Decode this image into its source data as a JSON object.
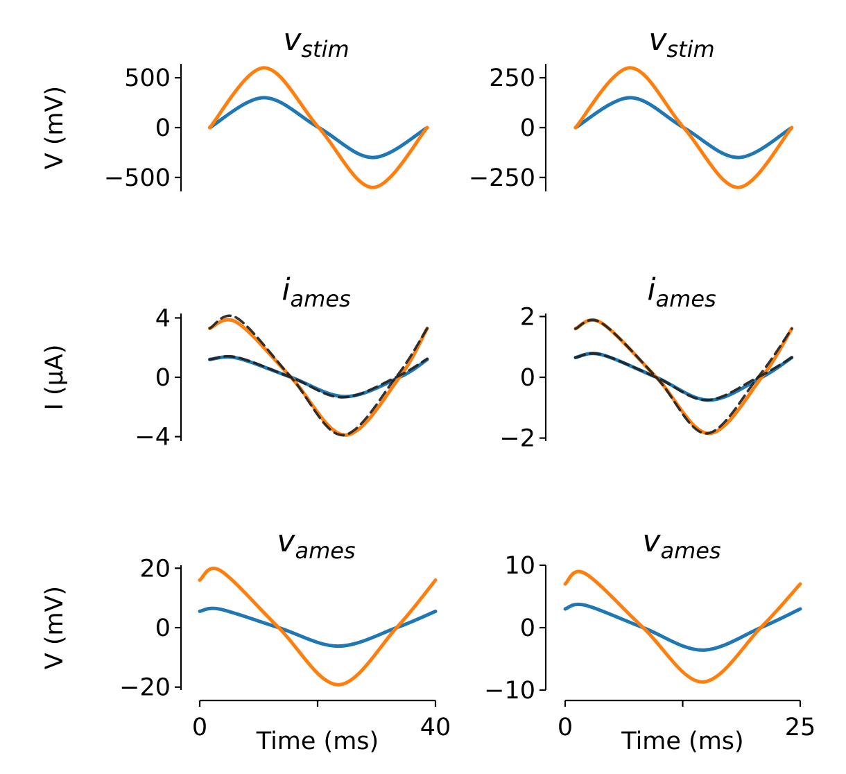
{
  "chart_data": [
    {
      "type": "line",
      "title_main": "v",
      "title_sub": "stim",
      "ylabel": "V (mV)",
      "ylim": [
        -640,
        640
      ],
      "yticks": [
        500,
        0,
        -500
      ],
      "ytick_labels": [
        "500",
        "0",
        "−500"
      ],
      "xlim": [
        0,
        40
      ],
      "series": [
        {
          "color": "#1f77b4",
          "x": [
            1.7,
            10.9,
            20.2,
            29.4,
            38.6
          ],
          "y": [
            0,
            300,
            0,
            -300,
            0
          ]
        },
        {
          "color": "#ff7f0e",
          "x": [
            1.7,
            10.9,
            20.2,
            29.4,
            38.6
          ],
          "y": [
            0,
            600,
            0,
            -600,
            0
          ]
        }
      ]
    },
    {
      "type": "line",
      "title_main": "v",
      "title_sub": "stim",
      "ylabel": "",
      "ylim": [
        -320,
        320
      ],
      "yticks": [
        250,
        0,
        -250
      ],
      "ytick_labels": [
        "250",
        "0",
        "−250"
      ],
      "xlim": [
        0,
        25
      ],
      "series": [
        {
          "color": "#1f77b4",
          "x": [
            1.1,
            6.9,
            12.6,
            18.4,
            24.1
          ],
          "y": [
            0,
            150,
            0,
            -150,
            0
          ]
        },
        {
          "color": "#ff7f0e",
          "x": [
            1.1,
            6.9,
            12.6,
            18.4,
            24.1
          ],
          "y": [
            0,
            300,
            0,
            -300,
            0
          ]
        }
      ]
    },
    {
      "type": "line",
      "title_main": "i",
      "title_sub": "ames",
      "ylabel": "I (μA)",
      "ylim": [
        -4.3,
        4.3
      ],
      "yticks": [
        4,
        0,
        -4
      ],
      "ytick_labels": [
        "4",
        "0",
        "−4"
      ],
      "xlim": [
        0,
        40
      ],
      "series": [
        {
          "color": "#1f77b4",
          "x": [
            1.7,
            6.3,
            15.5,
            24.7,
            33.9,
            38.6
          ],
          "y": [
            1.2,
            1.3,
            0,
            -1.3,
            0,
            1.2
          ]
        },
        {
          "color": "#ff7f0e",
          "x": [
            1.7,
            6.3,
            15.5,
            24.7,
            33.9,
            38.6
          ],
          "y": [
            3.3,
            3.7,
            0,
            -3.9,
            0,
            3.3
          ]
        },
        {
          "color": "#222222",
          "dashed": true,
          "x": [
            1.7,
            6.3,
            15.5,
            24.2,
            33.3,
            38.6
          ],
          "y": [
            1.2,
            1.35,
            0,
            -1.35,
            0,
            1.25
          ]
        },
        {
          "color": "#222222",
          "dashed": true,
          "x": [
            1.7,
            6.3,
            15.5,
            24.2,
            33.3,
            38.6
          ],
          "y": [
            3.3,
            4.0,
            0,
            -3.9,
            0,
            3.3
          ]
        }
      ]
    },
    {
      "type": "line",
      "title_main": "i",
      "title_sub": "ames",
      "ylabel": "",
      "ylim": [
        -2.1,
        2.1
      ],
      "yticks": [
        2,
        0,
        -2
      ],
      "ytick_labels": [
        "2",
        "0",
        "−2"
      ],
      "xlim": [
        0,
        25
      ],
      "series": [
        {
          "color": "#1f77b4",
          "x": [
            1.1,
            3.8,
            9.7,
            15.3,
            20.9,
            24.1
          ],
          "y": [
            0.65,
            0.75,
            0,
            -0.75,
            0,
            0.65
          ]
        },
        {
          "color": "#ff7f0e",
          "x": [
            1.1,
            3.8,
            9.7,
            15.3,
            20.9,
            24.1
          ],
          "y": [
            1.6,
            1.8,
            0,
            -1.85,
            0,
            1.6
          ]
        },
        {
          "color": "#222222",
          "dashed": true,
          "x": [
            1.1,
            3.8,
            9.7,
            15.0,
            20.5,
            24.1
          ],
          "y": [
            0.65,
            0.75,
            0,
            -0.75,
            0,
            0.65
          ]
        },
        {
          "color": "#222222",
          "dashed": true,
          "x": [
            1.1,
            3.8,
            9.7,
            15.0,
            20.5,
            24.1
          ],
          "y": [
            1.6,
            1.8,
            0,
            -1.85,
            0,
            1.6
          ]
        }
      ]
    },
    {
      "type": "line",
      "title_main": "v",
      "title_sub": "ames",
      "ylabel": "V (mV)",
      "xlabel": "Time (ms)",
      "ylim": [
        -21,
        21
      ],
      "yticks": [
        20,
        0,
        -20
      ],
      "ytick_labels": [
        "20",
        "0",
        "−20"
      ],
      "xlim": [
        0,
        40
      ],
      "xticks": [
        0,
        20,
        40
      ],
      "xtick_labels": [
        "0",
        "",
        "40"
      ],
      "series": [
        {
          "color": "#1f77b4",
          "x": [
            0,
            3.5,
            13.4,
            23.5,
            33.4,
            40
          ],
          "y": [
            5.5,
            6.2,
            0,
            -6.2,
            0,
            5.5
          ]
        },
        {
          "color": "#ff7f0e",
          "x": [
            0,
            3.5,
            13.4,
            23.5,
            33.4,
            40
          ],
          "y": [
            16,
            19.2,
            0,
            -19.2,
            0,
            16
          ]
        }
      ]
    },
    {
      "type": "line",
      "title_main": "v",
      "title_sub": "ames",
      "ylabel": "",
      "xlabel": "Time (ms)",
      "ylim": [
        -10,
        10
      ],
      "yticks": [
        10,
        0,
        -10
      ],
      "ytick_labels": [
        "10",
        "0",
        "−10"
      ],
      "xlim": [
        0,
        25
      ],
      "xticks": [
        0,
        12.5,
        25
      ],
      "xtick_labels": [
        "0",
        "",
        "25"
      ],
      "series": [
        {
          "color": "#1f77b4",
          "x": [
            0,
            2.1,
            8.3,
            14.6,
            20.8,
            25
          ],
          "y": [
            3.0,
            3.6,
            0,
            -3.6,
            0,
            3.0
          ]
        },
        {
          "color": "#ff7f0e",
          "x": [
            0,
            2.1,
            8.3,
            14.6,
            20.8,
            25
          ],
          "y": [
            7.0,
            8.7,
            0,
            -8.7,
            0,
            7.0
          ]
        }
      ]
    }
  ]
}
